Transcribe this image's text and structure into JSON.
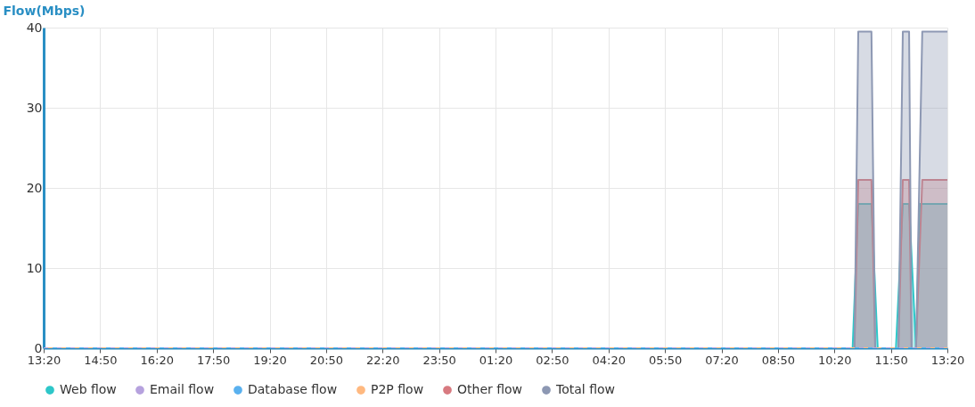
{
  "chart_data": {
    "type": "area",
    "ylabel": "Flow(Mbps)",
    "xlim": [
      "--01-01T13:20",
      "--01-02T13:20"
    ],
    "ylim": [
      0,
      40
    ],
    "yticks": [
      0,
      10,
      20,
      30,
      40
    ],
    "xticks": [
      {
        "value": "--01-01T13:20",
        "label": "13:20"
      },
      {
        "value": "--01-01T14:50",
        "label": "14:50"
      },
      {
        "value": "--01-01T16:20",
        "label": "16:20"
      },
      {
        "value": "--01-01T17:50",
        "label": "17:50"
      },
      {
        "value": "--01-01T19:20",
        "label": "19:20"
      },
      {
        "value": "--01-01T20:50",
        "label": "20:50"
      },
      {
        "value": "--01-01T22:20",
        "label": "22:20"
      },
      {
        "value": "--01-01T23:50",
        "label": "23:50"
      },
      {
        "value": "--01-02T01:20",
        "label": "01:20"
      },
      {
        "value": "--01-02T02:50",
        "label": "02:50"
      },
      {
        "value": "--01-02T04:20",
        "label": "04:20"
      },
      {
        "value": "--01-02T05:50",
        "label": "05:50"
      },
      {
        "value": "--01-02T07:20",
        "label": "07:20"
      },
      {
        "value": "--01-02T08:50",
        "label": "08:50"
      },
      {
        "value": "--01-02T10:20",
        "label": "10:20"
      },
      {
        "value": "--01-02T11:50",
        "label": "11:50"
      },
      {
        "value": "--01-02T13:20",
        "label": "13:20"
      }
    ],
    "grid": true,
    "legend": "bottom",
    "series": [
      {
        "name": "Web flow",
        "color": "#2ec7c9",
        "x": [
          "--01-01T13:20",
          "--01-02T10:49",
          "--01-02T10:58",
          "--01-02T11:19",
          "--01-02T11:29",
          "--01-02T11:58",
          "--01-02T12:09",
          "--01-02T12:19",
          "--01-02T12:30",
          "--01-02T12:36",
          "--01-02T13:20"
        ],
        "values": [
          0,
          0,
          18,
          18,
          0,
          0,
          18,
          18,
          0,
          18,
          18
        ]
      },
      {
        "name": "Email flow",
        "type": "line",
        "line_style": "dashed",
        "color": "#b6a2de",
        "x": [
          "--01-01T13:20",
          "--01-02T13:20"
        ],
        "values": [
          0,
          0
        ]
      },
      {
        "name": "Database flow",
        "type": "line",
        "line_style": "dashed",
        "color": "#5ab1ef",
        "x": [
          "--01-01T13:20",
          "--01-02T13:20"
        ],
        "values": [
          0,
          0
        ]
      },
      {
        "name": "P2P flow",
        "type": "line",
        "line_style": "dashed",
        "color": "#ffb980",
        "x": [
          "--01-01T13:20",
          "--01-02T13:20"
        ],
        "values": [
          0,
          0
        ]
      },
      {
        "name": "Other flow",
        "color": "#d87a80",
        "x": [
          "--01-01T13:20",
          "--01-02T10:52",
          "--01-02T10:58",
          "--01-02T11:19",
          "--01-02T11:25",
          "--01-02T12:02",
          "--01-02T12:09",
          "--01-02T12:19",
          "--01-02T12:23",
          "--01-02T12:30",
          "--01-02T12:40",
          "--01-02T13:20"
        ],
        "values": [
          0,
          0,
          21,
          21,
          0,
          0,
          21,
          21,
          0,
          0,
          21,
          21
        ]
      },
      {
        "name": "Total flow",
        "color": "#8d98b3",
        "x": [
          "--01-01T13:20",
          "--01-02T10:52",
          "--01-02T10:58",
          "--01-02T11:19",
          "--01-02T11:25",
          "--01-02T12:02",
          "--01-02T12:09",
          "--01-02T12:19",
          "--01-02T12:23",
          "--01-02T12:30",
          "--01-02T12:40",
          "--01-02T13:20"
        ],
        "values": [
          0,
          0,
          39.5,
          39.5,
          0,
          0,
          39.5,
          39.5,
          0,
          0,
          39.5,
          39.5
        ]
      }
    ]
  }
}
